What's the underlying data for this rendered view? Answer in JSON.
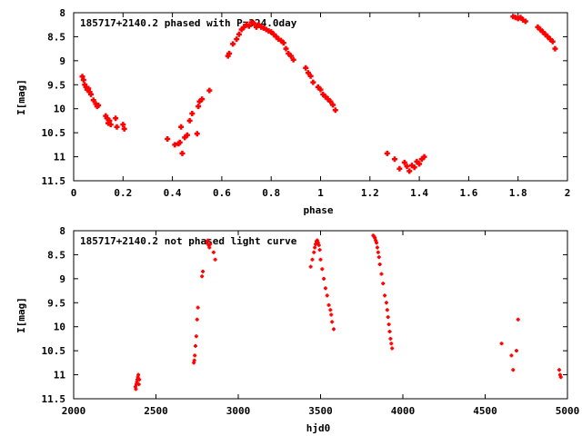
{
  "colors": {
    "points": "#ff0000",
    "axes": "#000000",
    "background": "#ffffff"
  },
  "chart_data": [
    {
      "type": "scatter",
      "title": "185717+2140.2 phased with P=324.0day",
      "xlabel": "phase",
      "ylabel": "I[mag]",
      "xlim": [
        0,
        2
      ],
      "ylim": [
        8,
        11.5
      ],
      "y_inverted": true,
      "xticks": [
        0,
        0.2,
        0.4,
        0.6,
        0.8,
        1,
        1.2,
        1.4,
        1.6,
        1.8,
        2
      ],
      "xtick_labels": [
        "0",
        "0.2",
        "0.4",
        "0.6",
        "0.8",
        "1",
        "1.2",
        "1.4",
        "1.6",
        "1.8",
        "2"
      ],
      "yticks": [
        8,
        8.5,
        9,
        9.5,
        10,
        10.5,
        11,
        11.5
      ],
      "ytick_labels": [
        "8",
        "8.5",
        "9",
        "9.5",
        "10",
        "10.5",
        "11",
        "11.5"
      ],
      "grid": false,
      "marker": "plus",
      "series": [
        {
          "x": [
            0.035,
            0.04,
            0.045,
            0.05,
            0.055,
            0.06,
            0.065,
            0.07,
            0.08,
            0.09,
            0.095,
            0.1,
            0.13,
            0.135,
            0.14,
            0.145,
            0.15,
            0.17,
            0.175,
            0.2,
            0.205,
            0.38,
            0.41,
            0.425,
            0.43,
            0.435,
            0.44,
            0.45,
            0.46,
            0.47,
            0.48,
            0.5,
            0.505,
            0.51,
            0.52,
            0.55,
            0.625,
            0.63,
            0.645,
            0.66,
            0.67,
            0.68,
            0.69,
            0.7,
            0.71,
            0.72,
            0.73,
            0.74,
            0.75,
            0.76,
            0.77,
            0.78,
            0.79,
            0.8,
            0.81,
            0.82,
            0.83,
            0.84,
            0.85,
            0.86,
            0.87,
            0.88,
            0.89,
            0.94,
            0.95,
            0.96,
            0.97,
            0.99,
            1.0,
            1.01,
            1.02,
            1.03,
            1.04,
            1.05,
            1.06,
            1.27,
            1.3,
            1.32,
            1.34,
            1.35,
            1.36,
            1.37,
            1.38,
            1.39,
            1.4,
            1.41,
            1.42,
            1.78,
            1.79,
            1.8,
            1.81,
            1.82,
            1.83,
            1.88,
            1.89,
            1.9,
            1.91,
            1.92,
            1.93,
            1.94,
            1.95
          ],
          "y": [
            9.33,
            9.4,
            9.5,
            9.55,
            9.6,
            9.58,
            9.65,
            9.7,
            9.82,
            9.9,
            9.95,
            9.93,
            10.15,
            10.2,
            10.3,
            10.25,
            10.33,
            10.2,
            10.38,
            10.33,
            10.42,
            10.63,
            10.75,
            10.73,
            10.7,
            10.38,
            10.93,
            10.6,
            10.55,
            10.25,
            10.1,
            10.52,
            9.95,
            9.85,
            9.8,
            9.62,
            8.9,
            8.85,
            8.65,
            8.55,
            8.45,
            8.35,
            8.3,
            8.25,
            8.28,
            8.2,
            8.22,
            8.3,
            8.25,
            8.3,
            8.32,
            8.35,
            8.38,
            8.4,
            8.45,
            8.5,
            8.55,
            8.58,
            8.63,
            8.75,
            8.85,
            8.9,
            8.98,
            9.15,
            9.25,
            9.32,
            9.45,
            9.55,
            9.6,
            9.7,
            9.75,
            9.8,
            9.85,
            9.92,
            10.03,
            10.93,
            11.05,
            11.25,
            11.12,
            11.2,
            11.3,
            11.18,
            11.22,
            11.1,
            11.15,
            11.05,
            11.0,
            8.08,
            8.1,
            8.12,
            8.1,
            8.15,
            8.18,
            8.3,
            8.35,
            8.4,
            8.45,
            8.5,
            8.55,
            8.6,
            8.75
          ]
        }
      ]
    },
    {
      "type": "scatter",
      "title": "185717+2140.2 not phased light curve",
      "xlabel": "hjd0",
      "ylabel": "I[mag]",
      "xlim": [
        2000,
        5000
      ],
      "ylim": [
        8,
        11.5
      ],
      "y_inverted": true,
      "xticks": [
        2000,
        2500,
        3000,
        3500,
        4000,
        4500,
        5000
      ],
      "xtick_labels": [
        "2000",
        "2500",
        "3000",
        "3500",
        "4000",
        "4500",
        "5000"
      ],
      "yticks": [
        8,
        8.5,
        9,
        9.5,
        10,
        10.5,
        11,
        11.5
      ],
      "ytick_labels": [
        "8",
        "8.5",
        "9",
        "9.5",
        "10",
        "10.5",
        "11",
        "11.5"
      ],
      "grid": false,
      "marker": "plus",
      "series": [
        {
          "x": [
            2375,
            2378,
            2381,
            2384,
            2387,
            2390,
            2393,
            2396,
            2399,
            2730,
            2733,
            2736,
            2740,
            2745,
            2750,
            2755,
            2780,
            2785,
            2810,
            2815,
            2820,
            2825,
            2830,
            2850,
            2860,
            3440,
            3450,
            3460,
            3465,
            3470,
            3475,
            3480,
            3485,
            3490,
            3495,
            3500,
            3510,
            3520,
            3530,
            3540,
            3550,
            3560,
            3565,
            3570,
            3580,
            3820,
            3825,
            3830,
            3835,
            3840,
            3845,
            3850,
            3855,
            3860,
            3870,
            3880,
            3890,
            3900,
            3905,
            3910,
            3915,
            3920,
            3925,
            3930,
            3935,
            4600,
            4660,
            4670,
            4690,
            4700,
            4950,
            4955,
            4960
          ],
          "y": [
            11.25,
            11.3,
            11.2,
            11.15,
            11.1,
            11.05,
            11.0,
            11.2,
            11.1,
            10.75,
            10.7,
            10.6,
            10.4,
            10.2,
            9.85,
            9.6,
            8.95,
            8.85,
            8.25,
            8.2,
            8.3,
            8.35,
            8.28,
            8.45,
            8.6,
            8.75,
            8.6,
            8.45,
            8.35,
            8.28,
            8.22,
            8.2,
            8.25,
            8.3,
            8.4,
            8.6,
            8.8,
            9.0,
            9.2,
            9.35,
            9.55,
            9.65,
            9.75,
            9.9,
            10.05,
            8.1,
            8.12,
            8.15,
            8.2,
            8.25,
            8.35,
            8.45,
            8.55,
            8.7,
            8.9,
            9.1,
            9.35,
            9.5,
            9.65,
            9.8,
            9.95,
            10.1,
            10.25,
            10.35,
            10.45,
            10.35,
            10.6,
            10.9,
            10.5,
            9.85,
            10.9,
            11.0,
            11.05
          ]
        }
      ]
    }
  ]
}
